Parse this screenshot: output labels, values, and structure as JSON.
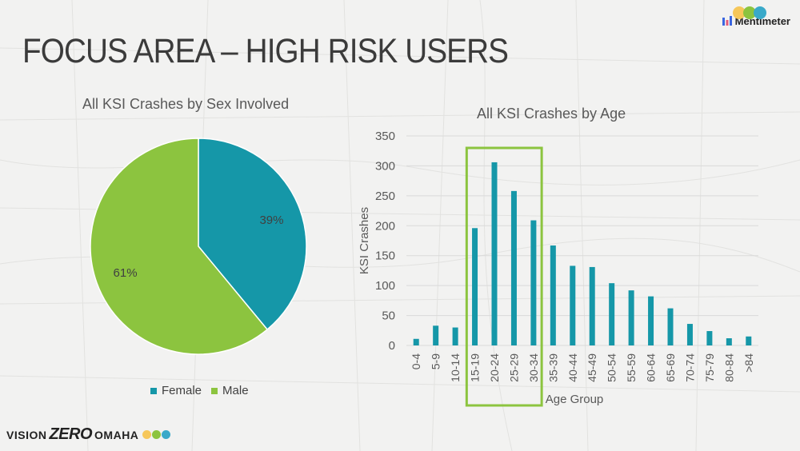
{
  "slide": {
    "title": "FOCUS AREA – HIGH RISK USERS"
  },
  "branding": {
    "mentimeter_label": "Mentimeter",
    "footer_vision": "VISION",
    "footer_zero": "ZERO",
    "footer_omaha": "OMAHA"
  },
  "colors": {
    "teal": "#1597a8",
    "green": "#8cc43f",
    "highlight_box": "#8cc43f"
  },
  "chart_data": [
    {
      "type": "pie",
      "title": "All KSI Crashes by Sex Involved",
      "labels": [
        "Female",
        "Male"
      ],
      "values": [
        39,
        61
      ],
      "data_labels": [
        "39%",
        "61%"
      ],
      "colors": [
        "#1597a8",
        "#8cc43f"
      ],
      "legend": {
        "position": "bottom",
        "items": [
          "Female",
          "Male"
        ]
      }
    },
    {
      "type": "bar",
      "title": "All KSI Crashes by Age",
      "xlabel": "Age Group",
      "ylabel": "KSI Crashes",
      "ylim": [
        0,
        350
      ],
      "yticks": [
        0,
        50,
        100,
        150,
        200,
        250,
        300,
        350
      ],
      "grid": true,
      "categories": [
        "0-4",
        "5-9",
        "10-14",
        "15-19",
        "20-24",
        "25-29",
        "30-34",
        "35-39",
        "40-44",
        "45-49",
        "50-54",
        "55-59",
        "60-64",
        "65-69",
        "70-74",
        "75-79",
        "80-84",
        ">84"
      ],
      "values": [
        11,
        33,
        30,
        196,
        306,
        258,
        209,
        167,
        133,
        131,
        104,
        92,
        82,
        62,
        36,
        24,
        12,
        15
      ],
      "bar_color": "#1597a8",
      "highlight": {
        "from": "15-19",
        "to": "30-34"
      }
    }
  ]
}
